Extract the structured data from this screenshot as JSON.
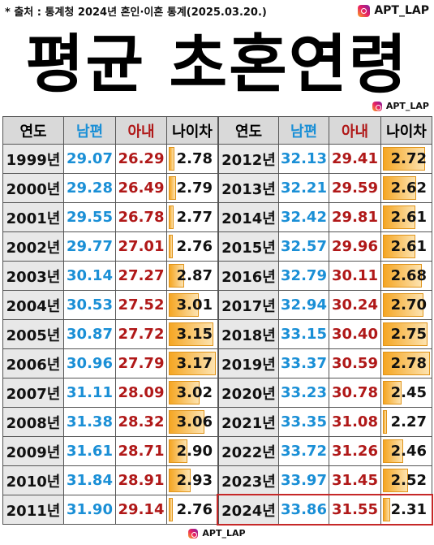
{
  "header": {
    "source": "* 출처 : 통계청 2024년 혼인·이혼 통계(2025.03.20.)",
    "logo": "APT_LAP",
    "title": "평균 초혼연령",
    "sub_logo": "APT_LAP"
  },
  "table": {
    "columns": [
      "연도",
      "남편",
      "아내",
      "나이차"
    ],
    "left_rows": [
      [
        "1999년",
        "29.07",
        "26.29",
        "2.78"
      ],
      [
        "2000년",
        "29.28",
        "26.49",
        "2.79"
      ],
      [
        "2001년",
        "29.55",
        "26.78",
        "2.77"
      ],
      [
        "2002년",
        "29.77",
        "27.01",
        "2.76"
      ],
      [
        "2003년",
        "30.14",
        "27.27",
        "2.87"
      ],
      [
        "2004년",
        "30.53",
        "27.52",
        "3.01"
      ],
      [
        "2005년",
        "30.87",
        "27.72",
        "3.15"
      ],
      [
        "2006년",
        "30.96",
        "27.79",
        "3.17"
      ],
      [
        "2007년",
        "31.11",
        "28.09",
        "3.02"
      ],
      [
        "2008년",
        "31.38",
        "28.32",
        "3.06"
      ],
      [
        "2009년",
        "31.61",
        "28.71",
        "2.90"
      ],
      [
        "2010년",
        "31.84",
        "28.91",
        "2.93"
      ],
      [
        "2011년",
        "31.90",
        "29.14",
        "2.76"
      ]
    ],
    "right_rows": [
      [
        "2012년",
        "32.13",
        "29.41",
        "2.72"
      ],
      [
        "2013년",
        "32.21",
        "29.59",
        "2.62"
      ],
      [
        "2014년",
        "32.42",
        "29.81",
        "2.61"
      ],
      [
        "2015년",
        "32.57",
        "29.96",
        "2.61"
      ],
      [
        "2016년",
        "32.79",
        "30.11",
        "2.68"
      ],
      [
        "2017년",
        "32.94",
        "30.24",
        "2.70"
      ],
      [
        "2018년",
        "33.15",
        "30.40",
        "2.75"
      ],
      [
        "2019년",
        "33.37",
        "30.59",
        "2.78"
      ],
      [
        "2020년",
        "33.23",
        "30.78",
        "2.45"
      ],
      [
        "2021년",
        "33.35",
        "31.08",
        "2.27"
      ],
      [
        "2022년",
        "33.72",
        "31.26",
        "2.46"
      ],
      [
        "2023년",
        "33.97",
        "31.45",
        "2.52"
      ],
      [
        "2024년",
        "33.86",
        "31.55",
        "2.31"
      ]
    ]
  },
  "footer_logo": "APT_LAP"
}
